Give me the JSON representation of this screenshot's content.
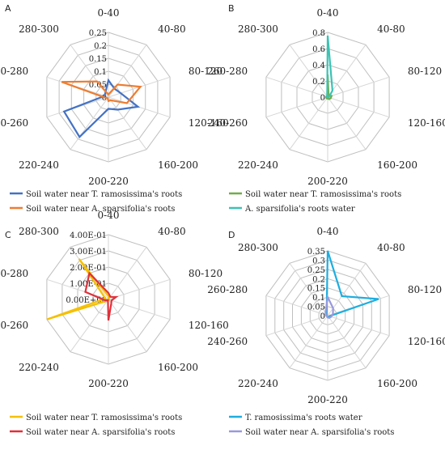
{
  "categories": [
    "0-40",
    "40-80",
    "80-120",
    "120-160",
    "160-200",
    "200-220",
    "220-240",
    "240-260",
    "260-280",
    "280-300"
  ],
  "chart_data": [
    {
      "type": "radar",
      "panel": "A",
      "categories": [
        "0-40",
        "40-80",
        "80-120",
        "120-160",
        "160-200",
        "200-220",
        "220-240",
        "240-260",
        "260-280",
        "280-300"
      ],
      "ylim": [
        0,
        0.25
      ],
      "ticks": [
        "0",
        "0.05",
        "0.1",
        "0.15",
        "0.2",
        "0.25"
      ],
      "grid": true,
      "series": [
        {
          "name": "Soil water near T. ramosissima's roots",
          "color": "#4472C4",
          "values": [
            0.065,
            0.04,
            0.05,
            0.12,
            0.06,
            0.045,
            0.19,
            0.18,
            0.015,
            0.02
          ]
        },
        {
          "name": "Soil water near A. sparsifolia's roots",
          "color": "#ED7D31",
          "values": [
            0.01,
            0.06,
            0.13,
            0.075,
            0.015,
            0.015,
            0.005,
            0.01,
            0.19,
            0.075
          ]
        }
      ]
    },
    {
      "type": "radar",
      "panel": "B",
      "categories": [
        "0-40",
        "40-80",
        "80-120",
        "120-160",
        "160-200",
        "200-220",
        "220-240",
        "240-260",
        "260-280",
        "280-300"
      ],
      "ylim": [
        0,
        0.8
      ],
      "ticks": [
        "0",
        "0.2",
        "0.4",
        "0.6",
        "0.8"
      ],
      "grid": true,
      "series": [
        {
          "name": "Soil water near T. ramosissima's roots",
          "color": "#70AD47",
          "values": [
            0.28,
            0.02,
            0.05,
            0.04,
            0.03,
            0.02,
            0.02,
            0.02,
            0.02,
            0.01
          ]
        },
        {
          "name": "A. sparsifolia's roots water",
          "color": "#3CC2B4",
          "values": [
            0.76,
            0.1,
            0.02,
            0.01,
            0.005,
            0.005,
            0.005,
            0.005,
            0.01,
            0.01
          ]
        }
      ]
    },
    {
      "type": "radar",
      "panel": "C",
      "categories": [
        "0-40",
        "40-80",
        "80-120",
        "120-160",
        "160-200",
        "200-220",
        "220-240",
        "240-260",
        "260-280",
        "280-300"
      ],
      "ylim": [
        0,
        0.4
      ],
      "ticks": [
        "0.00E+00",
        "1.00E-01",
        "2.00E-01",
        "3.00E-01",
        "4.00E-01"
      ],
      "grid": true,
      "series": [
        {
          "name": "Soil water near T. ramosissima's roots",
          "color": "#F5C000",
          "values": [
            0.02,
            0.005,
            0.005,
            0.005,
            0.005,
            0.005,
            0.01,
            0.4,
            0.02,
            0.31
          ]
        },
        {
          "name": "Soil water near A. sparsifolia's roots",
          "color": "#E0303A",
          "values": [
            0.04,
            0.02,
            0.05,
            0.02,
            0.03,
            0.13,
            0.005,
            0.02,
            0.15,
            0.2
          ]
        }
      ]
    },
    {
      "type": "radar",
      "panel": "D",
      "categories": [
        "0-40",
        "40-80",
        "80-120",
        "120-160",
        "160-200",
        "200-220",
        "220-240",
        "240-260",
        "260-280",
        "280-300"
      ],
      "ylim": [
        0,
        0.35
      ],
      "ticks": [
        "0",
        "0.05",
        "0.1",
        "0.15",
        "0.2",
        "0.25",
        "0.3",
        "0.35"
      ],
      "grid": true,
      "series": [
        {
          "name": "T. ramosissima's roots water",
          "color": "#1EAEE0",
          "values": [
            0.35,
            0.13,
            0.29,
            0.01,
            0.01,
            0.005,
            0.005,
            0.005,
            0.005,
            0.01
          ]
        },
        {
          "name": "Soil water near A. sparsifolia's roots",
          "color": "#9999DD",
          "values": [
            0.1,
            0.05,
            0.03,
            0.02,
            0.015,
            0.01,
            0.005,
            0.005,
            0.01,
            0.02
          ]
        }
      ]
    }
  ]
}
